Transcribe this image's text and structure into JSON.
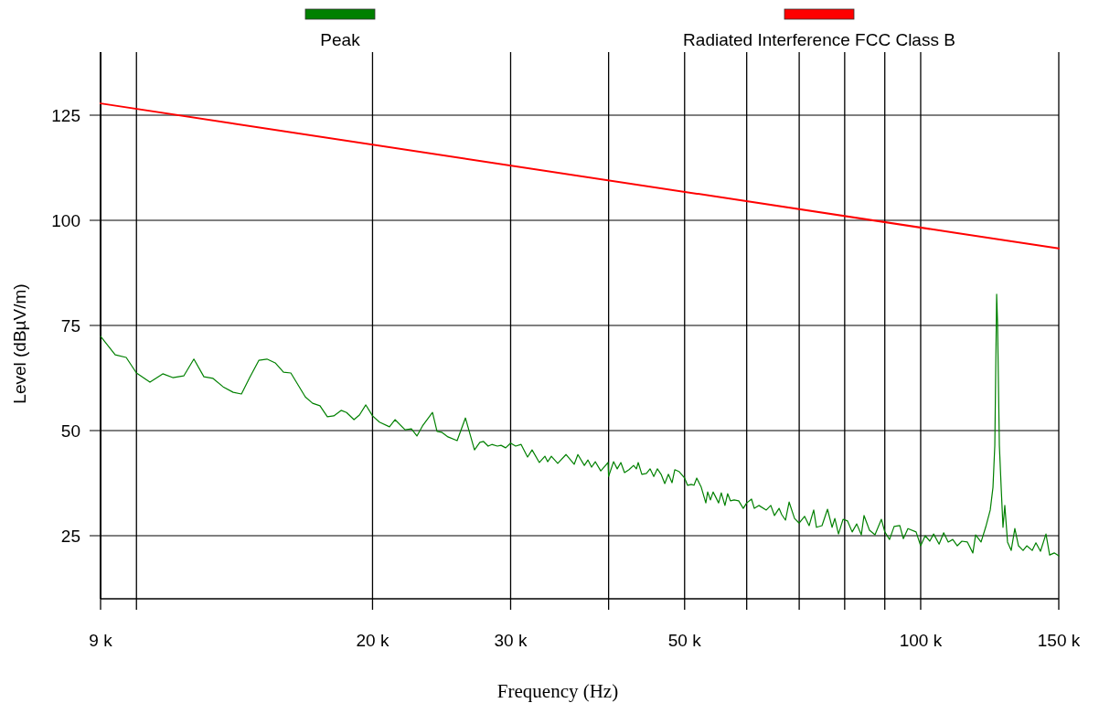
{
  "chart_data": {
    "type": "line",
    "xlabel": "Frequency (Hz)",
    "ylabel": "Level (dBµV/m)",
    "log": "x",
    "grid": true,
    "legend": "top",
    "marker": "none",
    "line_style": "solid",
    "xlim": [
      9000,
      150000
    ],
    "ylim": [
      10,
      140
    ],
    "xticks": [
      {
        "value": 9000,
        "label": "9 k"
      },
      {
        "value": 10000,
        "label": null
      },
      {
        "value": 20000,
        "label": "20 k"
      },
      {
        "value": 30000,
        "label": "30 k"
      },
      {
        "value": 40000,
        "label": null
      },
      {
        "value": 50000,
        "label": "50 k"
      },
      {
        "value": 60000,
        "label": null
      },
      {
        "value": 70000,
        "label": null
      },
      {
        "value": 80000,
        "label": null
      },
      {
        "value": 90000,
        "label": null
      },
      {
        "value": 100000,
        "label": "100 k"
      },
      {
        "value": 150000,
        "label": "150 k"
      }
    ],
    "yticks": [
      25,
      50,
      75,
      100,
      125
    ],
    "series": [
      {
        "name": "Peak",
        "color": "#008000",
        "x": [
          9000,
          9395,
          9703,
          10000,
          10404,
          10804,
          11125,
          11490,
          11836,
          12190,
          12521,
          12899,
          13285,
          13611,
          13944,
          14323,
          14670,
          15029,
          15400,
          15735,
          16420,
          16774,
          17140,
          17515,
          17850,
          18238,
          18534,
          18939,
          19245,
          19610,
          20000,
          20410,
          21020,
          21365,
          22005,
          22420,
          22785,
          23160,
          23850,
          24170,
          24500,
          24960,
          25640,
          26270,
          26980,
          27410,
          27710,
          28085,
          28390,
          28855,
          29165,
          29565,
          30000,
          30445,
          30940,
          31530,
          31950,
          32640,
          33175,
          33445,
          33810,
          34450,
          35295,
          36160,
          36550,
          37250,
          37650,
          38050,
          38465,
          39090,
          39935,
          40000,
          40590,
          41025,
          41465,
          41915,
          42475,
          43045,
          43400,
          43635,
          44100,
          44695,
          45180,
          45675,
          46160,
          46665,
          47170,
          47675,
          48185,
          48580,
          49230,
          50000,
          50435,
          50985,
          51400,
          51815,
          52510,
          53215,
          53505,
          53940,
          54370,
          54810,
          55250,
          55685,
          56285,
          56740,
          57200,
          57830,
          58610,
          59400,
          60000,
          60855,
          61355,
          62180,
          63550,
          64400,
          65100,
          65980,
          66510,
          67240,
          67960,
          69050,
          70000,
          71110,
          72070,
          73045,
          73640,
          74845,
          76070,
          77095,
          77720,
          78560,
          79615,
          80685,
          81780,
          82880,
          84000,
          84680,
          86050,
          87445,
          89110,
          90000,
          91265,
          92500,
          94050,
          95040,
          96330,
          98660,
          100000,
          101340,
          102700,
          103880,
          105560,
          106990,
          108430,
          109880,
          111350,
          112860,
          114700,
          116560,
          117500,
          119400,
          121020,
          122660,
          123650,
          124320,
          124990,
          125320,
          125990,
          126660,
          127340,
          128020,
          129050,
          130440,
          131850,
          133270,
          135080,
          136550,
          138770,
          140260,
          142160,
          144470,
          146040,
          148000,
          150000
        ],
        "values": [
          72.4,
          68.0,
          67.4,
          63.7,
          61.5,
          63.5,
          62.6,
          63.0,
          67.0,
          62.8,
          62.4,
          60.4,
          59.1,
          58.7,
          62.6,
          66.7,
          67.0,
          66.1,
          63.9,
          63.7,
          58.0,
          56.5,
          55.9,
          53.3,
          53.5,
          54.8,
          54.3,
          52.6,
          53.7,
          56.1,
          53.5,
          52.0,
          50.9,
          52.6,
          50.2,
          50.4,
          48.7,
          51.1,
          54.3,
          49.8,
          49.6,
          48.5,
          47.6,
          53.0,
          45.4,
          47.2,
          47.4,
          46.3,
          46.7,
          46.3,
          46.5,
          45.9,
          47.0,
          46.3,
          46.7,
          43.7,
          45.4,
          42.4,
          43.9,
          42.6,
          43.9,
          42.2,
          44.3,
          42.0,
          44.3,
          41.7,
          43.0,
          41.3,
          42.6,
          40.4,
          42.4,
          39.1,
          42.6,
          40.9,
          42.4,
          40.0,
          40.7,
          41.7,
          40.9,
          42.4,
          39.6,
          39.8,
          40.9,
          39.1,
          40.9,
          39.6,
          37.4,
          39.6,
          37.6,
          40.7,
          40.2,
          38.7,
          37.0,
          37.2,
          37.0,
          38.7,
          36.5,
          32.8,
          35.4,
          33.5,
          35.4,
          34.1,
          32.8,
          35.2,
          32.2,
          35.0,
          33.3,
          33.5,
          33.3,
          31.5,
          32.8,
          33.7,
          31.5,
          32.2,
          31.1,
          32.2,
          29.8,
          31.5,
          30.0,
          28.7,
          33.0,
          29.1,
          28.0,
          29.6,
          27.4,
          31.1,
          27.0,
          27.4,
          31.3,
          27.0,
          29.1,
          25.4,
          28.9,
          28.5,
          25.9,
          27.8,
          25.2,
          29.8,
          26.3,
          25.2,
          28.9,
          25.9,
          24.1,
          27.2,
          27.4,
          24.3,
          26.7,
          25.9,
          22.6,
          25.0,
          23.7,
          25.4,
          23.0,
          25.7,
          23.5,
          24.1,
          22.6,
          23.7,
          23.5,
          20.9,
          25.2,
          23.5,
          27.0,
          31.1,
          36.5,
          46.5,
          82.4,
          75.7,
          46.5,
          36.5,
          27.0,
          32.2,
          23.5,
          21.5,
          26.7,
          22.6,
          21.5,
          22.6,
          21.5,
          23.3,
          21.3,
          25.4,
          20.4,
          20.9,
          20.2
        ]
      },
      {
        "name": "Radiated Interference FCC Class B",
        "color": "#ff0000",
        "x": [
          9000,
          150000
        ],
        "values": [
          127.8,
          93.3
        ]
      }
    ]
  }
}
